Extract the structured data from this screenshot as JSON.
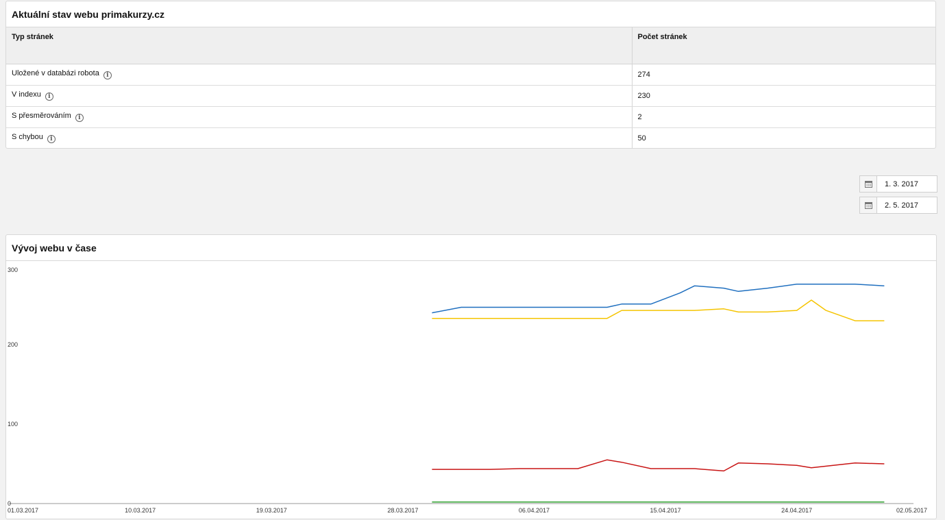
{
  "status": {
    "title": "Aktuální stav webu primakurzy.cz",
    "headers": [
      "Typ stránek",
      "Počet stránek"
    ],
    "rows": [
      {
        "label": "Uložené v databázi robota",
        "value": "274"
      },
      {
        "label": "V indexu",
        "value": "230"
      },
      {
        "label": "S přesměrováním",
        "value": "2"
      },
      {
        "label": "S chybou",
        "value": "50"
      }
    ]
  },
  "date_range": {
    "from": "1. 3. 2017",
    "to": "2. 5. 2017"
  },
  "chart": {
    "title": "Vývoj webu v čase"
  },
  "chart_data": {
    "type": "line",
    "title": "Vývoj webu v čase",
    "xlabel": "",
    "ylabel": "",
    "ylim": [
      0,
      300
    ],
    "yticks": [
      "0",
      "100",
      "200",
      "300"
    ],
    "xticks": [
      "01.03.2017",
      "10.03.2017",
      "19.03.2017",
      "28.03.2017",
      "06.04.2017",
      "15.04.2017",
      "24.04.2017",
      "02.05.2017"
    ],
    "xrange": [
      "2017-03-01",
      "2017-05-02"
    ],
    "series": [
      {
        "color": "#1f6fbf",
        "x": [
          "2017-03-30",
          "2017-04-01",
          "2017-04-03",
          "2017-04-05",
          "2017-04-07",
          "2017-04-09",
          "2017-04-11",
          "2017-04-12",
          "2017-04-14",
          "2017-04-16",
          "2017-04-17",
          "2017-04-19",
          "2017-04-20",
          "2017-04-22",
          "2017-04-24",
          "2017-04-26",
          "2017-04-28",
          "2017-04-30"
        ],
        "values": [
          240,
          247,
          247,
          247,
          247,
          247,
          247,
          251,
          251,
          265,
          274,
          271,
          267,
          271,
          276,
          276,
          276,
          274
        ]
      },
      {
        "color": "#f5c400",
        "x": [
          "2017-03-30",
          "2017-04-01",
          "2017-04-03",
          "2017-04-05",
          "2017-04-07",
          "2017-04-09",
          "2017-04-11",
          "2017-04-12",
          "2017-04-14",
          "2017-04-16",
          "2017-04-17",
          "2017-04-19",
          "2017-04-20",
          "2017-04-22",
          "2017-04-24",
          "2017-04-25",
          "2017-04-26",
          "2017-04-28",
          "2017-04-30"
        ],
        "values": [
          233,
          233,
          233,
          233,
          233,
          233,
          233,
          243,
          243,
          243,
          243,
          245,
          241,
          241,
          243,
          256,
          243,
          230,
          230
        ]
      },
      {
        "color": "#c81414",
        "x": [
          "2017-03-30",
          "2017-04-01",
          "2017-04-03",
          "2017-04-05",
          "2017-04-07",
          "2017-04-09",
          "2017-04-11",
          "2017-04-12",
          "2017-04-14",
          "2017-04-16",
          "2017-04-17",
          "2017-04-19",
          "2017-04-20",
          "2017-04-22",
          "2017-04-24",
          "2017-04-25",
          "2017-04-28",
          "2017-04-30"
        ],
        "values": [
          43,
          43,
          43,
          44,
          44,
          44,
          55,
          52,
          44,
          44,
          44,
          41,
          51,
          50,
          48,
          45,
          51,
          50
        ]
      },
      {
        "color": "#2ca02c",
        "x": [
          "2017-03-30",
          "2017-04-30"
        ],
        "values": [
          2,
          2
        ]
      }
    ]
  }
}
